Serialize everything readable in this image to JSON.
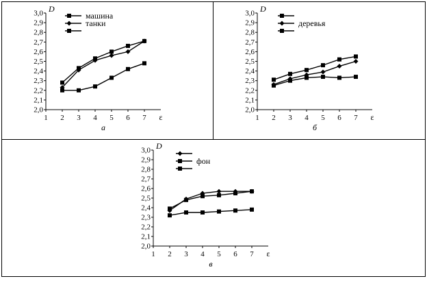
{
  "chart_data": [
    {
      "type": "line",
      "panel_label": "а",
      "ylabel": "D",
      "xlabel": "ε",
      "xlim": [
        1,
        8
      ],
      "ylim": [
        2.0,
        3.0
      ],
      "x_ticks": [
        "1",
        "2",
        "3",
        "4",
        "5",
        "6",
        "7"
      ],
      "y_ticks": [
        "2,0",
        "2,1",
        "2,2",
        "2,3",
        "2,4",
        "2,5",
        "2,6",
        "2,7",
        "2,8",
        "2,9",
        "3,0"
      ],
      "legend": [
        "машина",
        "танки",
        ""
      ],
      "series": [
        {
          "name": "машина",
          "marker": "square",
          "x": [
            2,
            3,
            4,
            5,
            6,
            7
          ],
          "y": [
            2.28,
            2.43,
            2.53,
            2.6,
            2.66,
            2.71
          ]
        },
        {
          "name": "танки",
          "marker": "diamond",
          "x": [
            2,
            3,
            4,
            5,
            6,
            7
          ],
          "y": [
            2.23,
            2.41,
            2.51,
            2.56,
            2.6,
            2.71
          ]
        },
        {
          "marker": "square",
          "x": [
            2,
            3,
            4,
            5,
            6,
            7
          ],
          "y": [
            2.2,
            2.2,
            2.24,
            2.33,
            2.42,
            2.48
          ]
        }
      ]
    },
    {
      "type": "line",
      "panel_label": "б",
      "ylabel": "D",
      "xlabel": "ε",
      "xlim": [
        1,
        8
      ],
      "ylim": [
        2.0,
        3.0
      ],
      "x_ticks": [
        "1",
        "2",
        "3",
        "4",
        "5",
        "6",
        "7"
      ],
      "y_ticks": [
        "2,0",
        "2,1",
        "2,2",
        "2,3",
        "2,4",
        "2,5",
        "2,6",
        "2,7",
        "2,8",
        "2,9",
        "3,0"
      ],
      "legend": [
        "",
        "деревья",
        ""
      ],
      "series": [
        {
          "marker": "square",
          "x": [
            2,
            3,
            4,
            5,
            6,
            7
          ],
          "y": [
            2.31,
            2.37,
            2.41,
            2.46,
            2.52,
            2.55
          ]
        },
        {
          "marker": "diamond",
          "x": [
            2,
            3,
            4,
            5,
            6,
            7
          ],
          "y": [
            2.26,
            2.32,
            2.36,
            2.39,
            2.45,
            2.5
          ]
        },
        {
          "marker": "square",
          "x": [
            2,
            3,
            4,
            5,
            6,
            7
          ],
          "y": [
            2.25,
            2.3,
            2.33,
            2.34,
            2.33,
            2.34
          ]
        }
      ]
    },
    {
      "type": "line",
      "panel_label": "в",
      "ylabel": "D",
      "xlabel": "ε",
      "xlim": [
        1,
        8
      ],
      "ylim": [
        2.0,
        3.0
      ],
      "x_ticks": [
        "1",
        "2",
        "3",
        "4",
        "5",
        "6",
        "7"
      ],
      "y_ticks": [
        "2,0",
        "2,1",
        "2,2",
        "2,3",
        "2,4",
        "2,5",
        "2,6",
        "2,7",
        "2,8",
        "2,9",
        "3,0"
      ],
      "legend": [
        "",
        "фон",
        ""
      ],
      "series": [
        {
          "marker": "diamond",
          "x": [
            2,
            3,
            4,
            5,
            6,
            7
          ],
          "y": [
            2.37,
            2.49,
            2.55,
            2.57,
            2.57,
            2.57
          ]
        },
        {
          "marker": "square",
          "x": [
            2,
            3,
            4,
            5,
            6,
            7
          ],
          "y": [
            2.39,
            2.48,
            2.52,
            2.53,
            2.55,
            2.57
          ]
        },
        {
          "marker": "square",
          "x": [
            2,
            3,
            4,
            5,
            6,
            7
          ],
          "y": [
            2.32,
            2.35,
            2.35,
            2.36,
            2.37,
            2.38
          ]
        }
      ]
    }
  ]
}
